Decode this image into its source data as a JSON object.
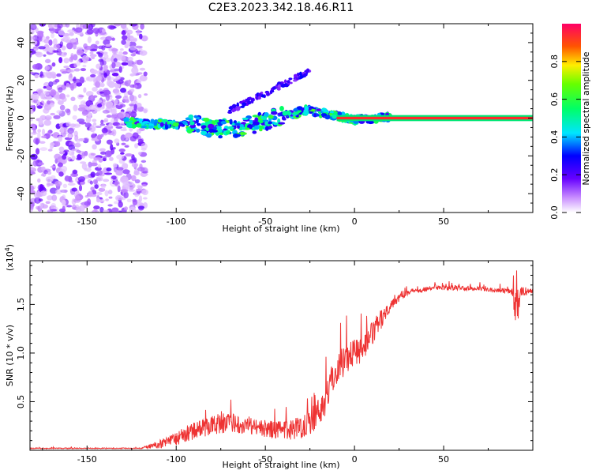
{
  "title": "C2E3.2023.342.18.46.R11",
  "colors": {
    "snr_line": "#ee3333",
    "band_core": "#ff2a2a",
    "band_edge": "#00e676"
  },
  "chart_data": [
    {
      "type": "heatmap",
      "name": "spectrogram",
      "xlabel": "Height of straight line (km)",
      "ylabel": "Frequency (Hz)",
      "xlim": [
        -182,
        100
      ],
      "ylim": [
        -50,
        50
      ],
      "xticks": [
        -150,
        -100,
        -50,
        0,
        50
      ],
      "yticks": [
        -40,
        -20,
        0,
        20,
        40
      ],
      "colorbar": {
        "label": "Normalized spectral amplitude",
        "range": [
          0.0,
          1.0
        ],
        "ticks": [
          "0.0",
          "0.2",
          "0.4",
          "0.6",
          "0.8"
        ],
        "tick_values": [
          0.0,
          0.2,
          0.4,
          0.6,
          0.8
        ]
      },
      "features": {
        "carrier_line": {
          "x_start": 20,
          "x_end": 100,
          "frequency": 0,
          "amplitude": 0.95
        },
        "tone_track": {
          "x_start": -128,
          "x_end": 20,
          "frequency_range": [
            -10,
            5
          ]
        },
        "diagonal_branch": {
          "x_start": -70,
          "x_end": -25,
          "frequency_range": [
            5,
            30
          ]
        },
        "noise_region": {
          "x_start": -182,
          "x_end": -125
        }
      }
    },
    {
      "type": "line",
      "name": "snr",
      "xlabel": "Height of straight line (km)",
      "ylabel": "SNR (10 * v/v)",
      "scale_label": "(x10",
      "scale_exp": "4",
      "scale_close": ")",
      "xlim": [
        -182,
        100
      ],
      "ylim": [
        0,
        1.95
      ],
      "xticks": [
        -150,
        -100,
        -50,
        0,
        50
      ],
      "yticks": [
        0.5,
        1.0,
        1.5
      ],
      "ytick_labels": [
        "0.5",
        "1.0",
        "1.5"
      ],
      "envelope": {
        "x": [
          -182,
          -120,
          -110,
          -100,
          -90,
          -80,
          -70,
          -60,
          -50,
          -40,
          -30,
          -20,
          -15,
          -10,
          -5,
          0,
          5,
          10,
          15,
          20,
          25,
          30,
          40,
          50,
          60,
          70,
          80,
          88,
          91,
          93,
          100
        ],
        "mean": [
          0.02,
          0.02,
          0.06,
          0.12,
          0.2,
          0.26,
          0.28,
          0.26,
          0.22,
          0.2,
          0.24,
          0.38,
          0.6,
          0.85,
          0.95,
          1.02,
          1.05,
          1.2,
          1.35,
          1.5,
          1.58,
          1.63,
          1.66,
          1.67,
          1.67,
          1.66,
          1.65,
          1.64,
          1.4,
          1.63,
          1.64
        ],
        "amp": [
          0.005,
          0.005,
          0.04,
          0.07,
          0.09,
          0.1,
          0.1,
          0.09,
          0.09,
          0.1,
          0.12,
          0.18,
          0.18,
          0.17,
          0.16,
          0.15,
          0.14,
          0.13,
          0.1,
          0.07,
          0.05,
          0.03,
          0.025,
          0.025,
          0.025,
          0.025,
          0.025,
          0.03,
          0.25,
          0.05,
          0.03
        ]
      }
    }
  ]
}
